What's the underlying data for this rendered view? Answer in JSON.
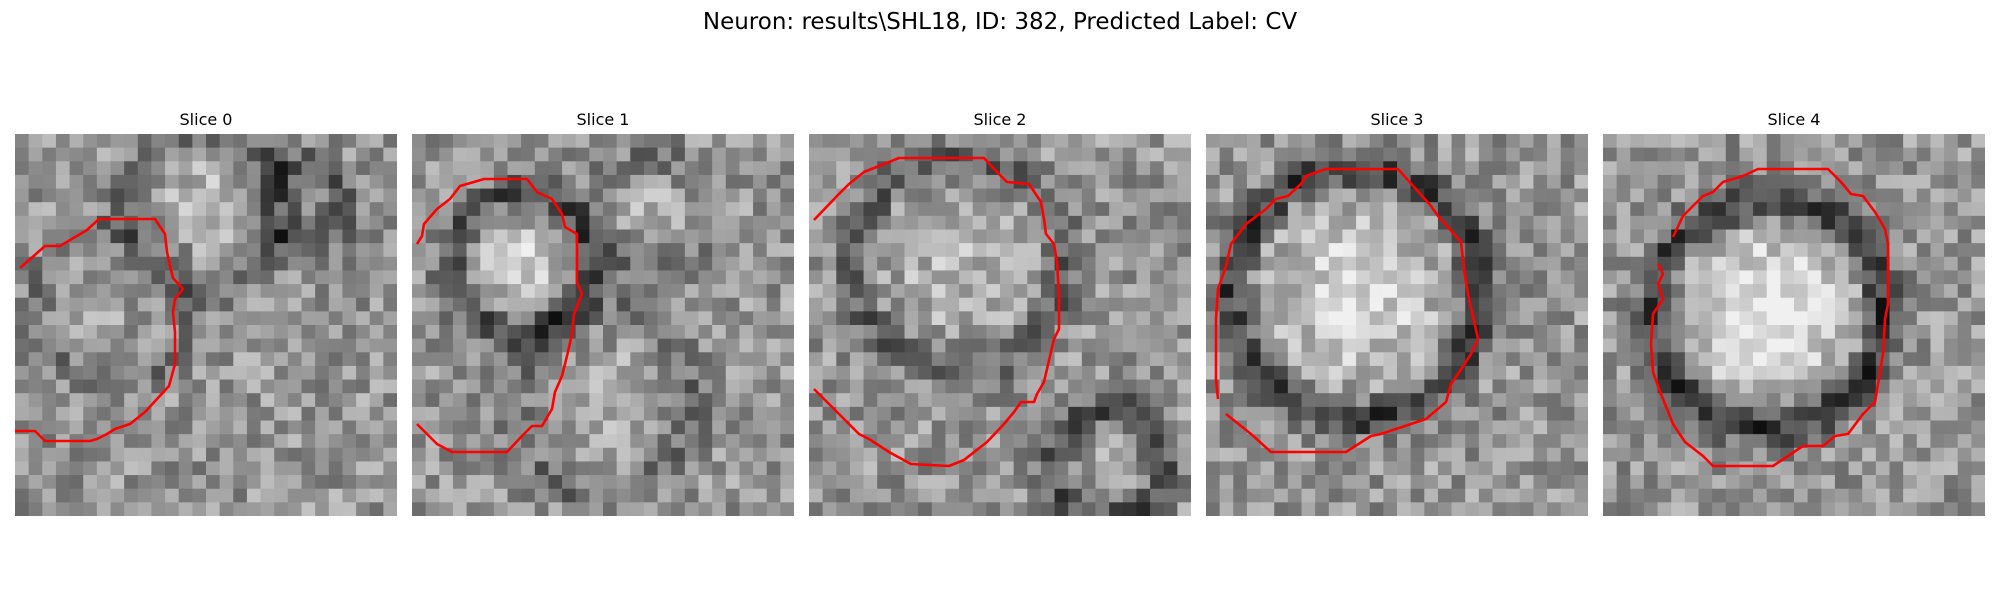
{
  "title": "Neuron: results\\SHL18, ID: 382, Predicted Label: CV",
  "contour_color": "#ff0000",
  "colormap": "gray",
  "panels": [
    {
      "label": "Slice 0"
    },
    {
      "label": "Slice 1"
    },
    {
      "label": "Slice 2"
    },
    {
      "label": "Slice 3"
    },
    {
      "label": "Slice 4"
    }
  ]
}
